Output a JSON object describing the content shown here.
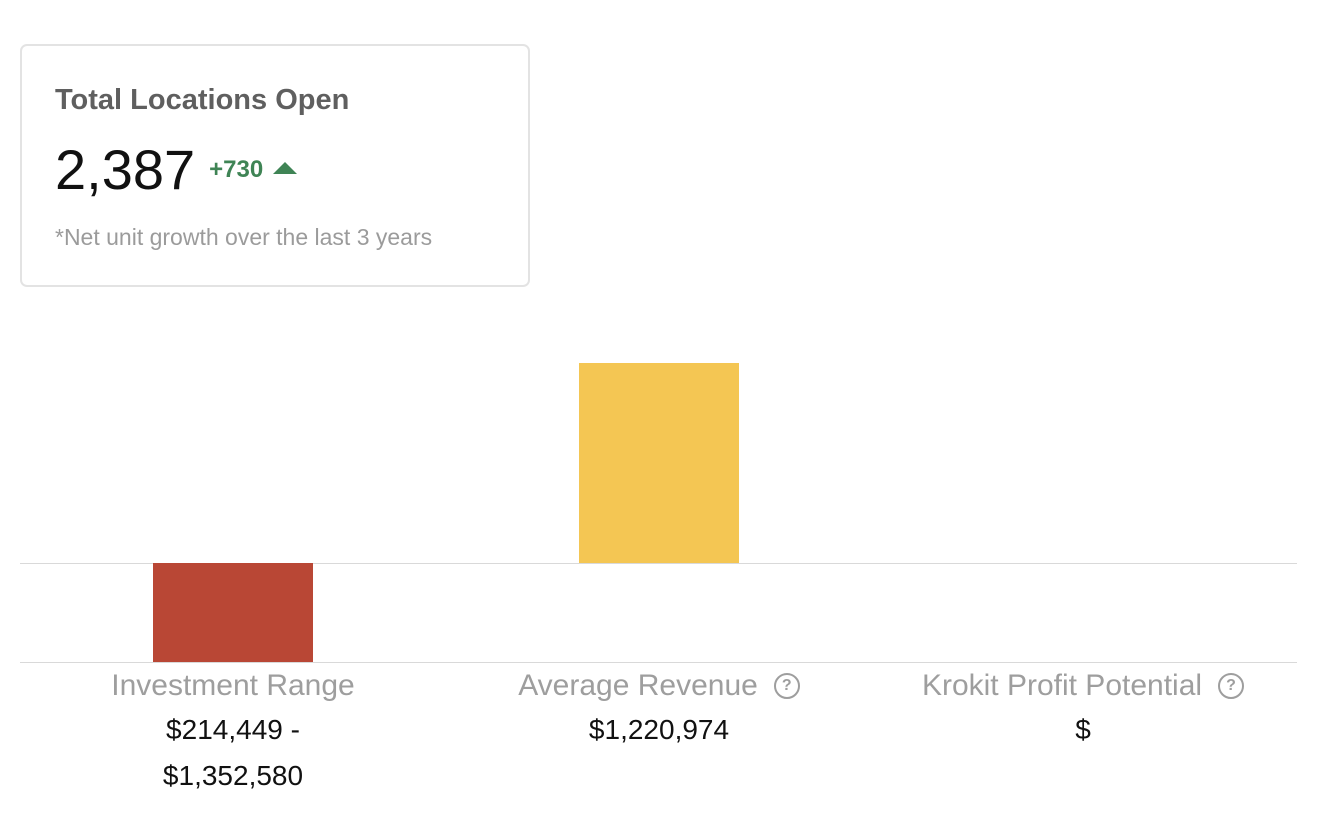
{
  "summary_card": {
    "title": "Total Locations Open",
    "value": "2,387",
    "delta": "+730",
    "delta_icon": "triangle-up-icon",
    "footnote": "*Net unit growth over the last 3 years",
    "delta_color": "#3f8455"
  },
  "chart_data": {
    "type": "bar",
    "categories": [
      "Investment Range",
      "Average Revenue",
      "Krokit Profit Potential"
    ],
    "values": [
      -1352580,
      1220974,
      0
    ],
    "value_labels": [
      "$214,449 - $1,352,580",
      "$1,220,974",
      "$"
    ],
    "value_label_lines": [
      [
        "$214,449 -",
        "$1,352,580"
      ],
      [
        "$1,220,974"
      ],
      [
        "$"
      ]
    ],
    "help_icons": [
      false,
      true,
      true
    ],
    "colors": [
      "#b94735",
      "#f4c653",
      "#cccccc"
    ],
    "title": "",
    "xlabel": "",
    "ylabel": "",
    "grid": false
  }
}
